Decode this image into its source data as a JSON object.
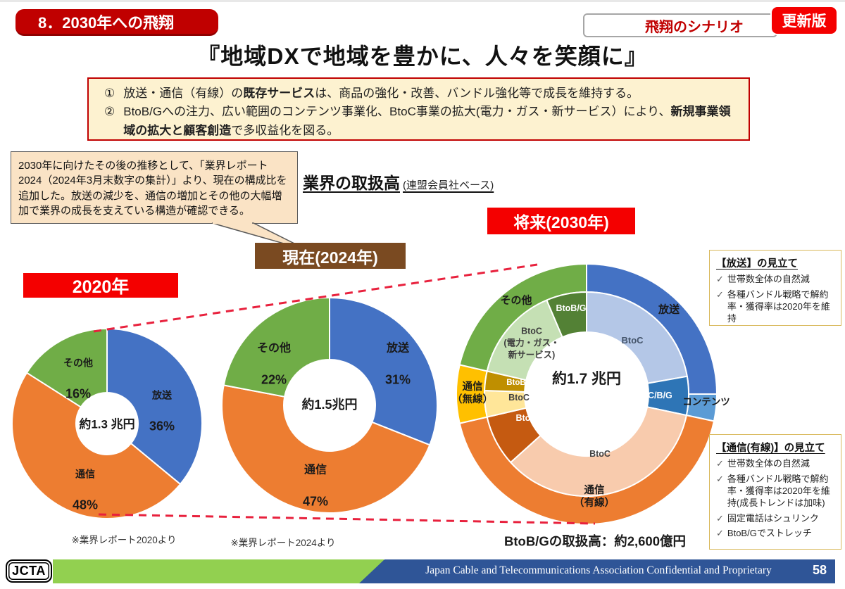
{
  "header": {
    "section_badge": "8．2030年への飛翔",
    "scenario_label": "飛翔のシナリオ",
    "updated_badge": "更新版",
    "title": "『地域DXで地域を豊かに、人々を笑顔に』"
  },
  "summary_box": {
    "items": [
      {
        "num": "①",
        "pre": "放送・通信（有線）の",
        "bold": "既存サービス",
        "post": "は、商品の強化・改善、バンドル強化等で成長を維持する。"
      },
      {
        "num": "②",
        "pre": "BtoB/Gへの注力、広い範囲のコンテンツ事業化、BtoC事業の拡大(電力・ガス・新サービス）により、",
        "bold": "新規事業領域の拡大と顧客創造",
        "post": "で多収益化を図る。"
      }
    ]
  },
  "callout": {
    "text": "2030年に向けたその後の推移として、「業界レポート2024（2024年3月末数字の集計）」より、現在の構成比を追加した。放送の減少を、通信の増加とその他の大幅増加で業界の成長を支えている構造が確認できる。"
  },
  "section": {
    "title": "業界の取扱高",
    "note": "(連盟会員社ベース)"
  },
  "check_glyph": "✓",
  "estimates": [
    {
      "title": "【放送】の見立て",
      "items": [
        "世帯数全体の自然減",
        "各種バンドル戦略で解約率・獲得率は2020年を維持"
      ]
    },
    {
      "title": "【通信(有線)】の見立て",
      "items": [
        "世帯数全体の自然減",
        "各種バンドル戦略で解約率・獲得率は2020年を維持(成長トレンドは加味)",
        "固定電話はシュリンク",
        "BtoB/Gでストレッチ"
      ]
    }
  ],
  "footer": {
    "logo": "JCTA",
    "text": "Japan Cable and Telecommunications Association Confidential and Proprietary",
    "page": "58"
  },
  "chart_data": [
    {
      "type": "donut",
      "id": "y2020",
      "label": "2020年",
      "center_text": "約1.3 兆円",
      "source": "※業界レポート2020より",
      "segments": [
        {
          "name": "放送",
          "value": 36,
          "pct_label": "36%",
          "color": "#4472C4"
        },
        {
          "name": "通信",
          "value": 48,
          "pct_label": "48%",
          "color": "#ED7D31"
        },
        {
          "name": "その他",
          "value": 16,
          "pct_label": "16%",
          "color": "#70AD47"
        }
      ]
    },
    {
      "type": "donut",
      "id": "y2024",
      "label": "現在(2024年)",
      "center_text": "約1.5兆円",
      "source": "※業界レポート2024より",
      "segments": [
        {
          "name": "放送",
          "value": 31,
          "pct_label": "31%",
          "color": "#4472C4"
        },
        {
          "name": "通信",
          "value": 47,
          "pct_label": "47%",
          "color": "#ED7D31"
        },
        {
          "name": "その他",
          "value": 22,
          "pct_label": "22%",
          "color": "#70AD47"
        }
      ]
    },
    {
      "type": "donut-2ring",
      "id": "y2030",
      "label": "将来(2030年)",
      "center_text": "約1.7 兆円",
      "note": "BtoB/Gの取扱高：約2,600億円",
      "outer": [
        {
          "name": "放送",
          "start": 0,
          "end": 90,
          "approx_pct": 25,
          "color": "#4472C4"
        },
        {
          "name": "コンテンツ",
          "start": 90,
          "end": 102,
          "approx_pct": 3,
          "color": "#5B9BD5"
        },
        {
          "name": "通信（有線）",
          "label": "通信\n（有線）",
          "start": 102,
          "end": 257,
          "approx_pct": 43,
          "color": "#ED7D31"
        },
        {
          "name": "通信（無線）",
          "label": "通信\n（無線）",
          "start": 257,
          "end": 283,
          "approx_pct": 7,
          "color": "#FFC000"
        },
        {
          "name": "その他",
          "start": 283,
          "end": 360,
          "approx_pct": 22,
          "color": "#70AD47"
        }
      ],
      "inner": [
        {
          "name": "BtoC",
          "start": 0,
          "end": 80,
          "color": "#B4C7E7"
        },
        {
          "name": "BtoC/B/G",
          "start": 80,
          "end": 102,
          "color": "#2E75B6"
        },
        {
          "name": "BtoC",
          "start": 102,
          "end": 228,
          "color": "#F8CBAD"
        },
        {
          "name": "BtoB/G",
          "start": 228,
          "end": 257,
          "color": "#C55A11"
        },
        {
          "name": "BtoC",
          "start": 257,
          "end": 272,
          "color": "#FFE699"
        },
        {
          "name": "BtoB/G",
          "start": 272,
          "end": 283,
          "color": "#BF8F00"
        },
        {
          "name": "BtoC（電力・ガス・新サービス）",
          "label": "BtoC\n(電力・ガス・\n新サービス)",
          "start": 283,
          "end": 337,
          "color": "#C5E0B4"
        },
        {
          "name": "BtoB/G",
          "start": 337,
          "end": 360,
          "color": "#538135"
        }
      ]
    }
  ]
}
